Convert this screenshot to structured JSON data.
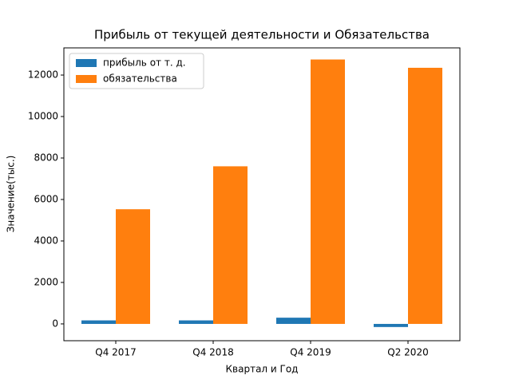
{
  "chart_data": {
    "type": "bar",
    "title": "Прибыль от текущей деятельности и Обязательства",
    "xlabel": "Квартал и Год",
    "ylabel": "Значение(тыс.)",
    "categories": [
      "Q4 2017",
      "Q4 2018",
      "Q4 2019",
      "Q2 2020"
    ],
    "series": [
      {
        "name": "прибыль от т. д.",
        "color": "#1f77b4",
        "values": [
          170,
          170,
          300,
          -150
        ]
      },
      {
        "name": "обязательства",
        "color": "#ff7f0e",
        "values": [
          5530,
          7600,
          12750,
          12350
        ]
      }
    ],
    "ylim": [
      -810,
      13310
    ],
    "yticks": [
      0,
      2000,
      4000,
      6000,
      8000,
      10000,
      12000
    ],
    "legend": "upper left"
  }
}
